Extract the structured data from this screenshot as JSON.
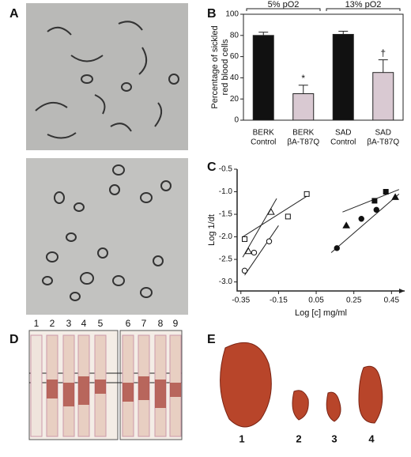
{
  "panel_labels": [
    "A",
    "B",
    "C",
    "D",
    "E"
  ],
  "chart_data": [
    {
      "type": "bar",
      "ylabel": [
        "Percentage of sickled",
        "red blood cells"
      ],
      "categories": [
        [
          "BERK",
          "Control"
        ],
        [
          "BERK",
          "βA-T87Q"
        ],
        [
          "SAD",
          "Control"
        ],
        [
          "SAD",
          "βA-T87Q"
        ]
      ],
      "values": [
        80,
        25,
        81,
        45
      ],
      "errors": [
        3,
        8,
        3,
        12
      ],
      "colors": [
        "#111111",
        "#d9c9d2",
        "#111111",
        "#d9c9d2"
      ],
      "groups": [
        "5% pO2",
        "13% pO2"
      ],
      "markers": [
        "",
        "*",
        "",
        "†"
      ],
      "ylim": [
        0,
        100
      ],
      "yticks": [
        0,
        20,
        40,
        60,
        80,
        100
      ],
      "grid": false
    },
    {
      "type": "scatter",
      "xlabel": "Log [c] mg/ml",
      "ylabel": "Log 1/dt",
      "series": [
        {
          "marker": "triangle",
          "filled": false,
          "x": [
            -0.31,
            -0.19
          ],
          "values": [
            -2.32,
            -1.45
          ]
        },
        {
          "marker": "square",
          "filled": false,
          "x": [
            -0.33,
            -0.1,
            0.0
          ],
          "values": [
            -2.05,
            -1.55,
            -1.05
          ]
        },
        {
          "marker": "circle",
          "filled": false,
          "x": [
            -0.33,
            -0.28,
            -0.2
          ],
          "values": [
            -2.75,
            -2.35,
            -2.1
          ]
        },
        {
          "marker": "square",
          "filled": true,
          "x": [
            0.36,
            0.42
          ],
          "values": [
            -1.2,
            -1.0
          ]
        },
        {
          "marker": "triangle",
          "filled": true,
          "x": [
            0.21,
            0.47
          ],
          "values": [
            -1.75,
            -1.12
          ]
        },
        {
          "marker": "circle",
          "filled": true,
          "x": [
            0.16,
            0.29,
            0.37
          ],
          "values": [
            -2.25,
            -1.6,
            -1.4
          ]
        }
      ],
      "lines": [
        {
          "x": [
            -0.34,
            -0.16
          ],
          "values": [
            -2.45,
            -1.15
          ]
        },
        {
          "x": [
            -0.34,
            0.0
          ],
          "values": [
            -2.0,
            -1.1
          ]
        },
        {
          "x": [
            -0.33,
            -0.15
          ],
          "values": [
            -2.85,
            -1.75
          ]
        },
        {
          "x": [
            0.19,
            0.49
          ],
          "values": [
            -1.45,
            -0.95
          ]
        },
        {
          "x": [
            0.13,
            0.49
          ],
          "values": [
            -2.35,
            -1.05
          ]
        }
      ],
      "xlim": [
        -0.37,
        0.52
      ],
      "ylim": [
        -3.2,
        -0.5
      ],
      "xticks": [
        -0.35,
        -0.15,
        0.05,
        0.25,
        0.45
      ],
      "yticks": [
        {
          "value": -3,
          "label": "-3.0"
        },
        -2.5,
        {
          "value": -2,
          "label": "-2.0"
        },
        -1.5,
        {
          "value": -1,
          "label": "-1.0"
        },
        -0.5
      ]
    }
  ],
  "gel": {
    "lanes": [
      "1",
      "2",
      "3",
      "4",
      "5",
      "6",
      "7",
      "8",
      "9"
    ]
  },
  "spleens": {
    "labels": [
      "1",
      "2",
      "3",
      "4"
    ]
  }
}
